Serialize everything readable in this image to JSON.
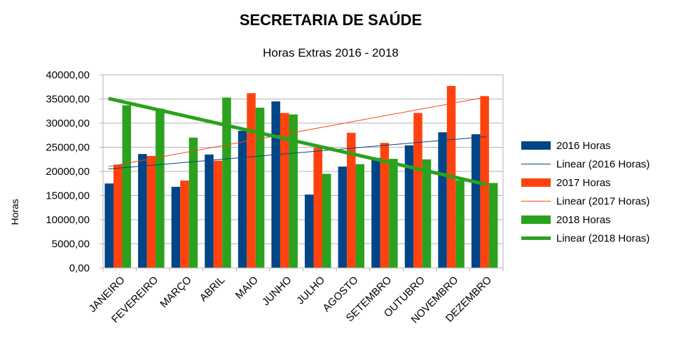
{
  "chart_data": {
    "type": "bar",
    "title": "SECRETARIA DE SAÚDE",
    "subtitle": "Horas Extras 2016 - 2018",
    "ylabel": "Horas",
    "xlabel": "",
    "ylim": [
      0,
      40000
    ],
    "yticks": [
      0,
      5000,
      10000,
      15000,
      20000,
      25000,
      30000,
      35000,
      40000
    ],
    "ytick_labels": [
      "0,00",
      "5000,00",
      "10000,00",
      "15000,00",
      "20000,00",
      "25000,00",
      "30000,00",
      "35000,00",
      "40000,00"
    ],
    "grid": true,
    "legend_position": "right",
    "categories": [
      "JANEIRO",
      "FEVEREIRO",
      "MARÇO",
      "ABRIL",
      "MAIO",
      "JUNHO",
      "JULHO",
      "AGOSTO",
      "SETEMBRO",
      "OUTUBRO",
      "NOVEMBRO",
      "DEZEMBRO"
    ],
    "series": [
      {
        "name": "2016 Horas",
        "color": "#004586",
        "values": [
          17500,
          23600,
          16800,
          23500,
          28400,
          34500,
          15200,
          21000,
          22800,
          25400,
          28100,
          27700
        ]
      },
      {
        "name": "2017 Horas",
        "color": "#ff420e",
        "values": [
          21400,
          23200,
          18100,
          22200,
          36200,
          32100,
          24900,
          28000,
          25900,
          32100,
          37700,
          35600
        ]
      },
      {
        "name": "2018 Horas",
        "color": "#2aa21d",
        "values": [
          33700,
          33000,
          27000,
          35300,
          33200,
          31800,
          19500,
          21500,
          22600,
          22500,
          18200,
          17600
        ]
      }
    ],
    "trendlines": [
      {
        "name": "Linear (2016 Horas)",
        "color": "#004586",
        "width": 1,
        "start": 20500,
        "end": 27200
      },
      {
        "name": "Linear (2017 Horas)",
        "color": "#ff420e",
        "width": 1,
        "start": 21000,
        "end": 35400
      },
      {
        "name": "Linear (2018 Horas)",
        "color": "#2aa21d",
        "width": 5,
        "start": 35100,
        "end": 17300
      }
    ],
    "legend": [
      "2016 Horas",
      "Linear (2016 Horas)",
      "2017 Horas",
      "Linear (2017 Horas)",
      "2018 Horas",
      "Linear (2018 Horas)"
    ]
  }
}
